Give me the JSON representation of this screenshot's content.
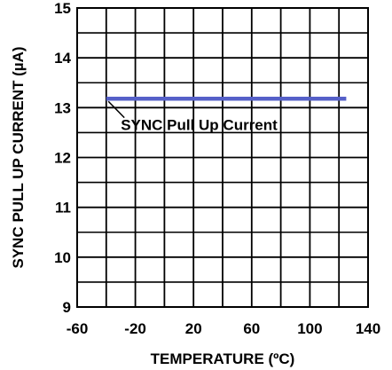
{
  "chart_data": {
    "type": "line",
    "title": "",
    "xlabel": "TEMPERATURE (ºC)",
    "ylabel": "SYNC PULL UP CURRENT (µA)",
    "xlim": [
      -60,
      140
    ],
    "ylim": [
      9,
      15
    ],
    "xticks": [
      -60,
      -20,
      20,
      60,
      100,
      140
    ],
    "yticks": [
      9,
      10,
      11,
      12,
      13,
      14,
      15
    ],
    "grid": true,
    "series": [
      {
        "name": "SYNC Pull Up Current",
        "color": "#5560c8",
        "x": [
          -40,
          125
        ],
        "y": [
          13.18,
          13.18
        ]
      }
    ],
    "annotations": [
      {
        "text": "SYNC Pull Up Current",
        "x": -30,
        "y": 12.55
      }
    ]
  }
}
